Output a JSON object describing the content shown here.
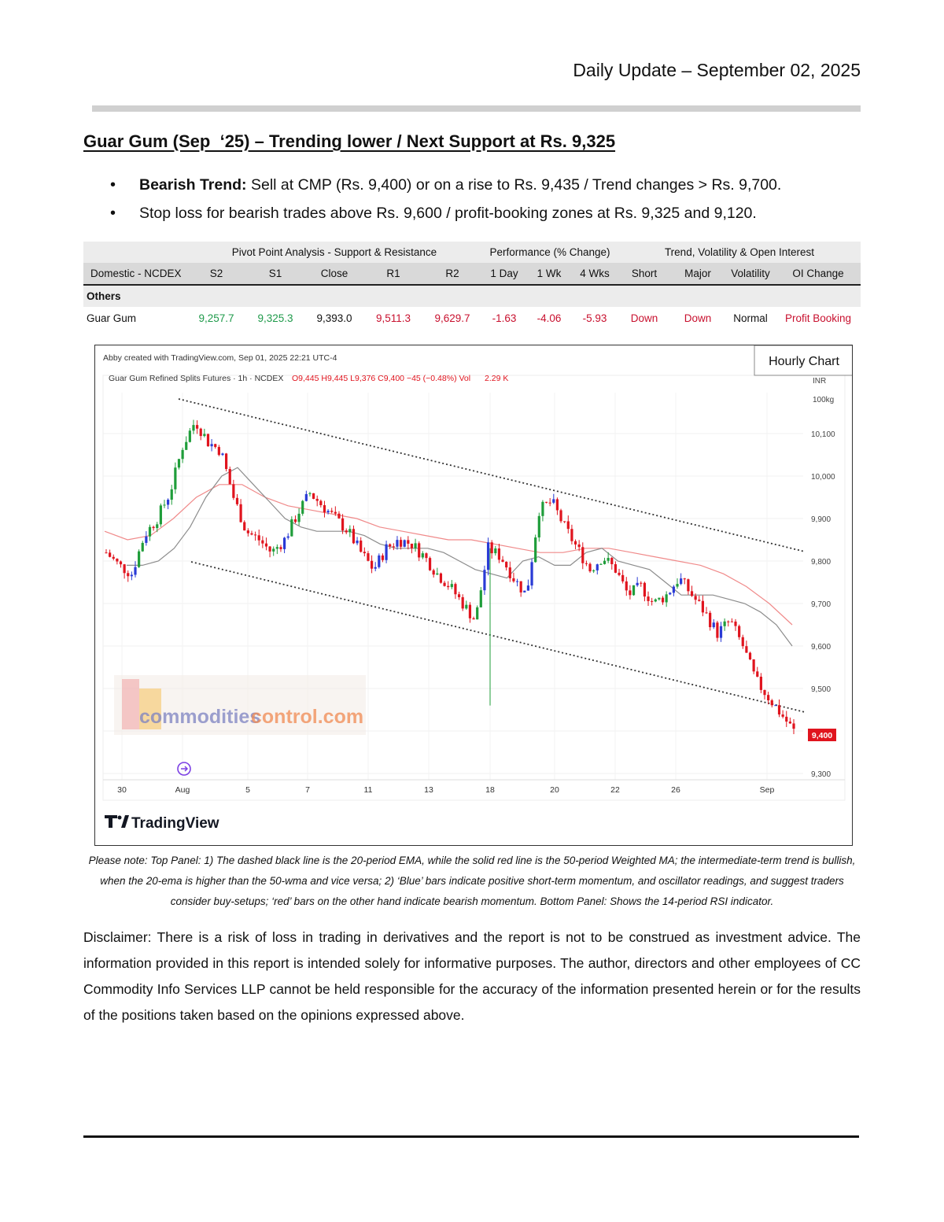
{
  "header": {
    "date_line": "Daily Update – September 02, 2025"
  },
  "headline": "Guar Gum (Sep  ‘25) – Trending lower / Next Support at Rs. 9,325",
  "bullets": {
    "b1_bold": "Bearish Trend:",
    "b1_text": " Sell at CMP (Rs. 9,400) or on a rise to Rs. 9,435 / Trend changes > Rs. 9,700.",
    "b2_text": "Stop loss for bearish trades above Rs. 9,600 / profit-booking zones at Rs. 9,325 and 9,120."
  },
  "table": {
    "groups": [
      "Pivot Point Analysis - Support & Resistance",
      "Performance (% Change)",
      "Trend, Volatility & Open Interest"
    ],
    "headers": [
      "Domestic - NCDEX",
      "S2",
      "S1",
      "Close",
      "R1",
      "R2",
      "1 Day",
      "1 Wk",
      "4 Wks",
      "Short",
      "Major",
      "Volatility",
      "OI Change"
    ],
    "category": "Others",
    "row": [
      "Guar Gum",
      "9,257.7",
      "9,325.3",
      "9,393.0",
      "9,511.3",
      "9,629.7",
      "-1.63",
      "-4.06",
      "-5.93",
      "Down",
      "Down",
      "Normal",
      "Profit Booking"
    ],
    "colors": {
      "green": "#1e9a4a",
      "red": "#c8102e"
    }
  },
  "chart": {
    "created_by": "Abby created with TradingView.com, Sep 01, 2025 22:21 UTC-4",
    "symbol_line": "Guar Gum Refined Splits Futures · 1h · NCDEX",
    "ohlc": "O9,445  H9,445  L9,376  C9,400  −45 (−0.48%)  Vol",
    "volume": "2.29 K",
    "badge": "Hourly Chart",
    "unit_line1": "INR",
    "unit_line2": "100kg",
    "last_price_label": "9,400",
    "watermark_a": "commodities",
    "watermark_b": "control.com",
    "brand": "TradingView"
  },
  "chart_data": {
    "type": "candlestick",
    "title": "Guar Gum Refined Splits Futures · 1h · NCDEX",
    "x_tick_labels": [
      "30",
      "Aug",
      "5",
      "7",
      "11",
      "13",
      "18",
      "20",
      "22",
      "26",
      "Sep"
    ],
    "y_tick_labels": [
      "9,300",
      "9,400",
      "9,500",
      "9,600",
      "9,700",
      "9,800",
      "9,900",
      "10,000",
      "10,100"
    ],
    "ylim": [
      9300,
      10150
    ],
    "last_price": 9400,
    "approx_close_path": [
      9820,
      9790,
      9770,
      9860,
      9900,
      9960,
      10070,
      10130,
      10080,
      10060,
      9950,
      9870,
      9850,
      9820,
      9850,
      9910,
      9960,
      9930,
      9900,
      9870,
      9820,
      9780,
      9830,
      9850,
      9840,
      9810,
      9770,
      9740,
      9700,
      9660,
      9830,
      9810,
      9760,
      9720,
      9920,
      9940,
      9880,
      9830,
      9780,
      9810,
      9780,
      9720,
      9740,
      9700,
      9720,
      9760,
      9720,
      9680,
      9630,
      9660,
      9600,
      9520,
      9480,
      9440,
      9400
    ],
    "ema20_path": [
      9790,
      9790,
      9800,
      9830,
      9880,
      9950,
      10000,
      10020,
      9980,
      9940,
      9900,
      9880,
      9870,
      9870,
      9870,
      9860,
      9840,
      9830,
      9830,
      9830,
      9820,
      9800,
      9780,
      9770,
      9760,
      9800,
      9810,
      9790,
      9790,
      9820,
      9830,
      9800,
      9790,
      9780,
      9750,
      9720,
      9720,
      9720,
      9710,
      9700,
      9680,
      9650,
      9600
    ],
    "wma50_path": [
      9870,
      9850,
      9860,
      9900,
      9950,
      9980,
      9980,
      9950,
      9930,
      9920,
      9910,
      9900,
      9880,
      9870,
      9860,
      9850,
      9850,
      9840,
      9830,
      9820,
      9820,
      9830,
      9830,
      9820,
      9810,
      9800,
      9790,
      9770,
      9740,
      9700,
      9650
    ],
    "upper_trendline": [
      {
        "x": "Aug",
        "y": 10130
      },
      {
        "x": "Sep",
        "y": 9830
      }
    ],
    "lower_trendline": [
      {
        "x": "Aug",
        "y": 9810
      },
      {
        "x": "Sep",
        "y": 9450
      }
    ],
    "colors": {
      "up": "#1f9d3a",
      "down": "#e0141e",
      "neutral": "#2a3bd6",
      "ema20": "#8c8c8c",
      "wma50": "#f08a8a"
    }
  },
  "note": "Please note: Top Panel: 1) The dashed black line is the 20-period EMA, while the solid red line is the 50-period Weighted MA; the intermediate-term trend is bullish, when the 20-ema is higher than the 50-wma and vice versa; 2) ‘Blue’ bars indicate positive short-term momentum, and oscillator readings, and suggest traders consider buy-setups; ‘red’ bars on the other hand indicate bearish momentum. Bottom Panel: Shows the 14-period RSI indicator.",
  "disclaimer": "Disclaimer: There is a risk of loss in trading in derivatives and the report is not to be construed as investment advice. The information provided in this report is intended solely for informative purposes. The author, directors and other employees of CC Commodity Info Services LLP cannot be held responsible for the accuracy of the information presented herein or for the results of the positions taken based on the opinions expressed above."
}
